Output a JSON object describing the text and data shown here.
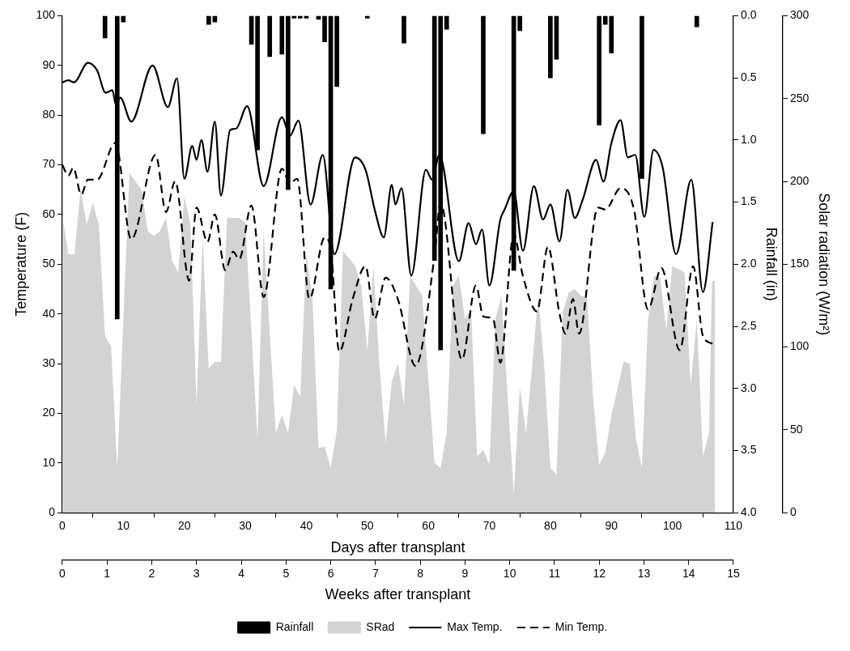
{
  "chart_data": {
    "type": "line",
    "xlabel": "Days after transplant",
    "ylabel": "Temperature (F)",
    "y2label": "Rainfall (in)",
    "y3label": "Solar radiation (W/m²)",
    "x2label": "Weeks after transplant",
    "xlim": [
      0,
      110
    ],
    "xticks": [
      0,
      10,
      20,
      30,
      40,
      50,
      60,
      70,
      80,
      90,
      100,
      110
    ],
    "x2lim": [
      0,
      15
    ],
    "x2ticks": [
      0,
      1,
      2,
      3,
      4,
      5,
      6,
      7,
      8,
      9,
      10,
      11,
      12,
      13,
      14,
      15
    ],
    "ylim": [
      0,
      100
    ],
    "yticks": [
      0,
      10,
      20,
      30,
      40,
      50,
      60,
      70,
      80,
      90,
      100
    ],
    "y2lim": [
      4,
      0
    ],
    "y2ticks": [
      {
        "value": 0,
        "label": "0.0"
      },
      0.5,
      {
        "value": 1,
        "label": "1.0"
      },
      1.5,
      {
        "value": 2,
        "label": "2.0"
      },
      2.5,
      {
        "value": 3,
        "label": "3.0"
      },
      3.5,
      {
        "value": 4,
        "label": "4.0"
      }
    ],
    "y3lim": [
      0,
      300
    ],
    "y3ticks": [
      0,
      50,
      100,
      150,
      200,
      250,
      300
    ],
    "grid": false,
    "legend": "bottom",
    "marker": "none",
    "x": [
      7,
      9,
      10,
      24,
      25,
      31,
      32,
      34,
      36,
      37,
      38,
      39,
      40,
      42,
      43,
      44,
      45,
      50,
      56,
      61,
      62,
      63,
      69,
      74,
      75,
      80,
      81,
      88,
      89,
      90,
      95,
      104
    ],
    "series": [
      {
        "name": "Rainfall",
        "type": "bar",
        "axis": "y2",
        "color": "#000000",
        "values": [
          0.18,
          2.44,
          0.05,
          0.07,
          0.05,
          0.23,
          1.08,
          0.33,
          0.31,
          1.4,
          0.02,
          0.02,
          0.02,
          0.03,
          0.21,
          2.2,
          0.57,
          0.02,
          0.22,
          1.97,
          2.69,
          0.11,
          0.95,
          2.05,
          0.12,
          0.5,
          0.35,
          0.88,
          0.07,
          0.3,
          1.31,
          0.09
        ]
      },
      {
        "name": "SRad",
        "type": "area",
        "axis": "y3",
        "color": "#d3d3d3",
        "x": [
          0,
          1,
          2,
          3,
          4,
          5,
          6,
          7,
          8,
          9,
          11,
          13,
          14,
          15,
          16,
          17,
          18,
          19,
          20,
          21,
          22,
          23,
          24,
          25,
          26,
          27,
          28,
          29,
          30,
          32,
          33,
          35,
          36,
          37,
          38,
          39,
          40,
          41,
          42,
          43,
          44,
          45,
          46,
          48,
          49,
          50,
          51,
          52,
          53,
          54,
          55,
          56,
          57,
          58,
          59,
          61,
          62,
          63,
          64,
          65,
          66,
          67,
          68,
          69,
          70,
          71,
          72,
          73,
          74,
          75,
          76,
          77,
          78,
          79,
          80,
          81,
          82,
          83,
          84,
          85,
          86,
          87,
          88,
          89,
          90,
          92,
          93,
          94,
          95,
          96,
          97,
          98,
          99,
          100,
          102,
          103,
          104,
          105,
          106,
          106.5,
          107
        ],
        "values": [
          180,
          156,
          156,
          195,
          174,
          187,
          174,
          107,
          100,
          27,
          205,
          195,
          170,
          167,
          170,
          178,
          152,
          145,
          191,
          174,
          65,
          166,
          87,
          91,
          91,
          178,
          178,
          178,
          175,
          44,
          170,
          48,
          59,
          48,
          77,
          70,
          156,
          129,
          39,
          40,
          27,
          50,
          158,
          149,
          137,
          98,
          149,
          88,
          42,
          79,
          90,
          65,
          143,
          137,
          131,
          30,
          27,
          48,
          137,
          143,
          117,
          123,
          34,
          38,
          29,
          117,
          131,
          70,
          11,
          76,
          48,
          88,
          131,
          88,
          27,
          23,
          121,
          133,
          135,
          131,
          130,
          70,
          29,
          36,
          59,
          91,
          90,
          45,
          27,
          116,
          143,
          142,
          110,
          149,
          145,
          77,
          117,
          34,
          48,
          140,
          140
        ]
      },
      {
        "name": "Max Temp.",
        "type": "line",
        "line_style": "solid",
        "color": "#000000",
        "x": [
          0,
          1,
          1.9,
          4.2,
          5.7,
          7.1,
          8.2,
          8.8,
          9.5,
          11.3,
          14.8,
          17.3,
          18.8,
          20,
          21.3,
          22,
          22.8,
          23.8,
          25,
          26,
          27.5,
          28.5,
          30.3,
          33,
          36,
          37.3,
          38.7,
          40.7,
          42.7,
          44.6,
          48,
          49.7,
          51.3,
          52.7,
          54,
          54.6,
          55.6,
          57.2,
          59.6,
          60.6,
          61.8,
          65,
          66.6,
          67.8,
          68.8,
          70,
          71.8,
          72.5,
          74,
          75.5,
          77.3,
          78.8,
          80,
          81.5,
          82.8,
          84,
          85.3,
          87.5,
          88.7,
          90,
          91.5,
          92.7,
          93.9,
          95.4,
          96.9,
          98.4,
          100.6,
          103.1,
          105,
          106.6
        ],
        "values": [
          86.6,
          87,
          86.6,
          90.5,
          89,
          84.5,
          85,
          82,
          83.5,
          78.7,
          90,
          81.6,
          87.4,
          67.2,
          73.8,
          71,
          75,
          68.6,
          78.7,
          63.8,
          77,
          77.3,
          81.8,
          65.7,
          79.6,
          75.8,
          78.9,
          62,
          72,
          52,
          71.5,
          69,
          60.5,
          55.4,
          66,
          62,
          65.3,
          47.7,
          69,
          67,
          72,
          50.6,
          58.3,
          54,
          57,
          45.7,
          59,
          61,
          64.7,
          52.7,
          65.7,
          59,
          62,
          54.6,
          65,
          59.3,
          63,
          71,
          66.6,
          74.4,
          79,
          71.5,
          72,
          59.5,
          73,
          69.5,
          52,
          67,
          44.4,
          58.5
        ]
      },
      {
        "name": "Min Temp.",
        "type": "line",
        "line_style": "dashed",
        "color": "#000000",
        "x": [
          0,
          1,
          1.8,
          3.1,
          4.2,
          5.7,
          8.7,
          11.3,
          15.3,
          17,
          18.5,
          20.8,
          22,
          23.8,
          25,
          26.7,
          28,
          29,
          31,
          33,
          36,
          37.3,
          38.5,
          40.5,
          43,
          44,
          45.4,
          47.6,
          49.7,
          51.2,
          53,
          55,
          57.9,
          61,
          62,
          65.5,
          67.8,
          69,
          70.6,
          71.8,
          74,
          75.5,
          77.8,
          79.6,
          81.5,
          82.5,
          83.7,
          84.7,
          87.8,
          89,
          91.5,
          93.7,
          96,
          98.2,
          101.2,
          103.4,
          105,
          106.6
        ],
        "values": [
          70,
          67.8,
          69.4,
          64,
          67,
          67,
          74.4,
          55,
          72,
          60.5,
          66.7,
          46.7,
          61.4,
          54.5,
          60,
          48.8,
          52.5,
          51,
          61.8,
          43.4,
          69.2,
          66.3,
          67.2,
          43,
          55.4,
          53,
          32.4,
          43,
          49.6,
          39,
          47.3,
          43,
          29.5,
          51.6,
          62.4,
          30.8,
          45.7,
          39.5,
          39,
          30.2,
          56,
          47.6,
          40.5,
          53.5,
          40,
          36,
          43,
          36,
          61.4,
          61,
          65.3,
          61,
          40.9,
          49.2,
          32.7,
          49.6,
          35.6,
          34
        ]
      }
    ]
  }
}
